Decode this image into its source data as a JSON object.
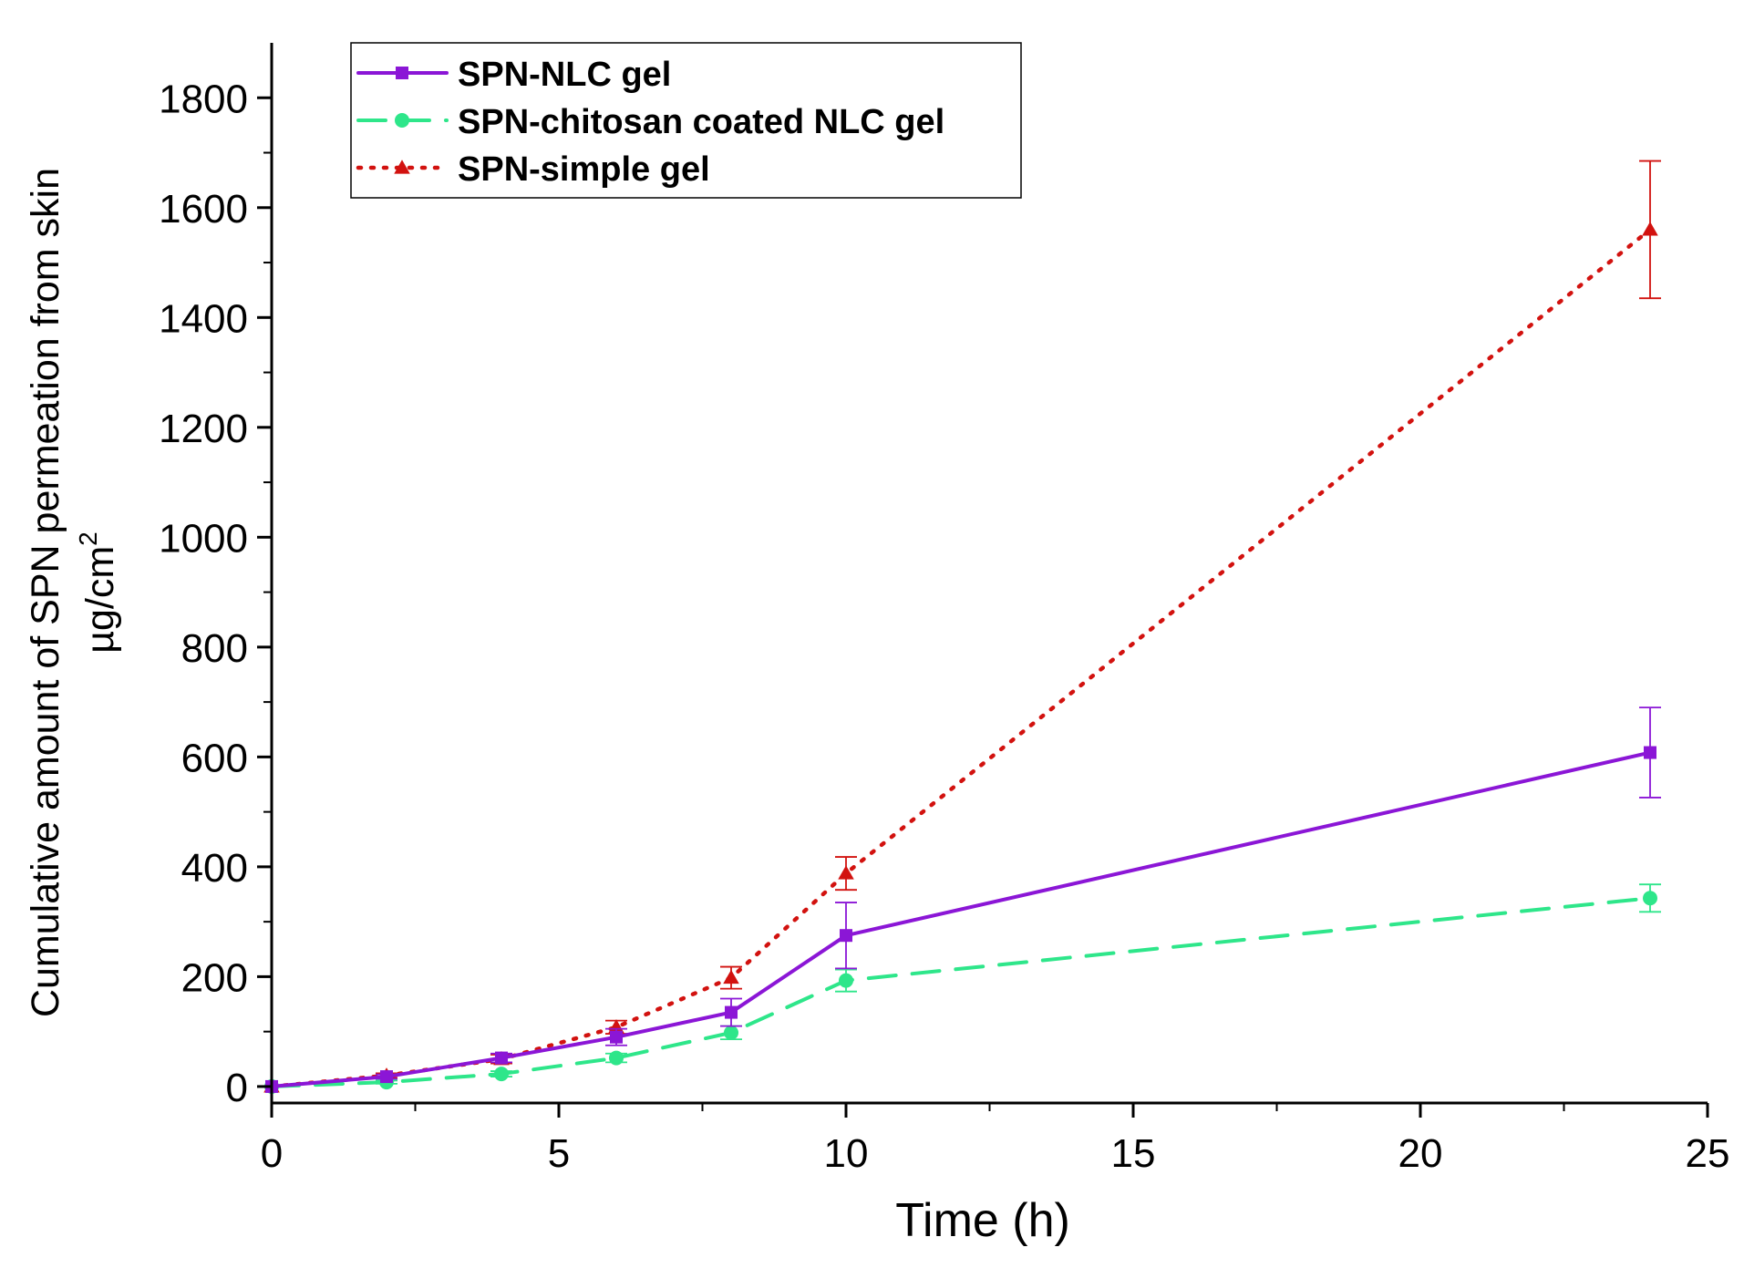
{
  "chart_data": {
    "type": "line",
    "title": "",
    "xlabel": "Time (h)",
    "ylabel_line1": "Cumulative amount of SPN permeation from skin",
    "ylabel_line2": "µg/cm",
    "ylabel_superscript": "2",
    "xlim": [
      0,
      25
    ],
    "ylim": [
      -30,
      1900
    ],
    "xticks": [
      0,
      5,
      10,
      15,
      20,
      25
    ],
    "xtick_labels": [
      "0",
      "5",
      "10",
      "15",
      "20",
      "25"
    ],
    "yticks": [
      0,
      200,
      400,
      600,
      800,
      1000,
      1200,
      1400,
      1600,
      1800
    ],
    "ytick_labels": [
      "0",
      "200",
      "400",
      "600",
      "800",
      "1000",
      "1200",
      "1400",
      "1600",
      "1800"
    ],
    "grid": false,
    "legend_position": "top-left",
    "x": [
      0,
      2,
      4,
      6,
      8,
      10,
      24
    ],
    "series": [
      {
        "name": "SPN-NLC gel",
        "color": "#8b16d6",
        "line_style": "solid",
        "marker": "square",
        "values": [
          0,
          18,
          52,
          90,
          135,
          275,
          608
        ],
        "errors": [
          0,
          4,
          8,
          15,
          25,
          60,
          82
        ]
      },
      {
        "name": "SPN-chitosan coated NLC gel",
        "color": "#2ee68a",
        "line_style": "dashed",
        "marker": "circle",
        "values": [
          0,
          8,
          23,
          52,
          98,
          193,
          343
        ],
        "errors": [
          0,
          3,
          5,
          8,
          12,
          20,
          25
        ]
      },
      {
        "name": "SPN-simple gel",
        "color": "#d2120f",
        "line_style": "dotted",
        "marker": "triangle",
        "values": [
          0,
          20,
          50,
          108,
          198,
          388,
          1560
        ],
        "errors": [
          0,
          4,
          8,
          12,
          20,
          30,
          125
        ]
      }
    ]
  }
}
